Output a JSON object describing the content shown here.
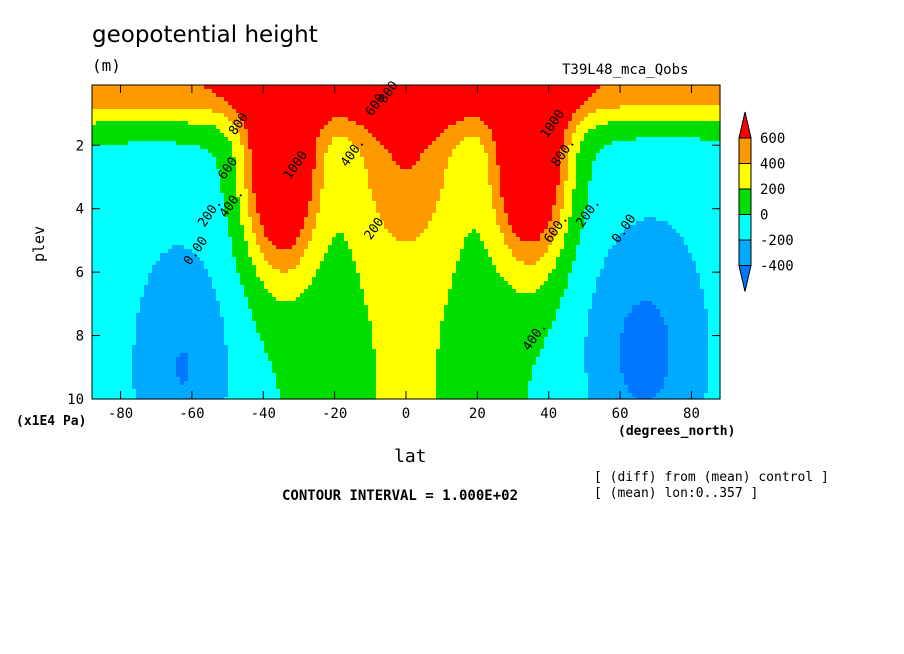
{
  "header": {
    "title": "geopotential height",
    "units": "(m)",
    "run_label": "T39L48_mca_Qobs"
  },
  "footer": {
    "contour_interval": "CONTOUR INTERVAL = 1.000E+02",
    "note_diff": "[ (diff) from (mean) control ]",
    "note_mean": "[ (mean) lon:0..357 ]"
  },
  "chart_data": {
    "type": "heatmap",
    "title": "geopotential height",
    "xlabel": "lat",
    "xunit": "(degrees_north)",
    "ylabel": "plev",
    "yunit": "(x1E4 Pa)",
    "xlim": [
      -88,
      88
    ],
    "ylim": [
      0.1,
      10
    ],
    "y_inverted": true,
    "xticks": [
      "-80",
      "-60",
      "-40",
      "-20",
      "0",
      "20",
      "40",
      "60",
      "80"
    ],
    "xtick_values": [
      -80,
      -60,
      -40,
      -20,
      0,
      20,
      40,
      60,
      80
    ],
    "yticks": [
      "2",
      "4",
      "6",
      "8",
      "10"
    ],
    "ytick_values": [
      2,
      4,
      6,
      8,
      10
    ],
    "contour_interval": 100,
    "colorbar": {
      "labels": [
        "600",
        "400",
        "200",
        "0",
        "-200",
        "-400"
      ],
      "levels": [
        600,
        400,
        200,
        0,
        -200,
        -400
      ],
      "colors": [
        "#ff0000",
        "#ff9900",
        "#ffff00",
        "#00dd00",
        "#00ffff",
        "#00aaff",
        "#0077ff"
      ]
    },
    "contour_labels": [
      {
        "text": "800",
        "lat": -46,
        "p": 1.4
      },
      {
        "text": "600",
        "lat": -49,
        "p": 2.8
      },
      {
        "text": "400.",
        "lat": -48,
        "p": 3.9
      },
      {
        "text": "200.",
        "lat": -54,
        "p": 4.2
      },
      {
        "text": "0.00",
        "lat": -58,
        "p": 5.4
      },
      {
        "text": "1000",
        "lat": -30,
        "p": 2.7
      },
      {
        "text": "400.",
        "lat": -14,
        "p": 2.3
      },
      {
        "text": "200",
        "lat": -8,
        "p": 4.7
      },
      {
        "text": "800",
        "lat": -4,
        "p": 0.4
      },
      {
        "text": "600.",
        "lat": -7,
        "p": 0.7
      },
      {
        "text": "1000",
        "lat": 42,
        "p": 1.4
      },
      {
        "text": "800.",
        "lat": 45,
        "p": 2.3
      },
      {
        "text": "600.",
        "lat": 43,
        "p": 4.7
      },
      {
        "text": "400.",
        "lat": 37,
        "p": 8.1
      },
      {
        "text": "200.",
        "lat": 52,
        "p": 4.2
      },
      {
        "text": "0.00",
        "lat": 62,
        "p": 4.7
      }
    ]
  }
}
